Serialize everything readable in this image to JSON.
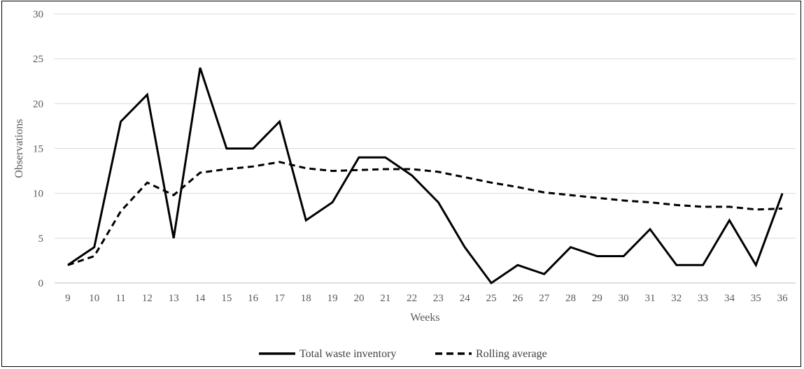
{
  "chart_data": {
    "type": "line",
    "xlabel": "Weeks",
    "ylabel": "Observations",
    "x": [
      "9",
      "10",
      "11",
      "12",
      "13",
      "14",
      "15",
      "16",
      "17",
      "18",
      "19",
      "20",
      "21",
      "22",
      "23",
      "24",
      "25",
      "26",
      "27",
      "28",
      "29",
      "30",
      "31",
      "32",
      "33",
      "34",
      "35",
      "36"
    ],
    "ylim": [
      0,
      30
    ],
    "yticks": [
      "0",
      "5",
      "10",
      "15",
      "20",
      "25",
      "30"
    ],
    "grid": true,
    "legend_position": "bottom",
    "series": [
      {
        "name": "Total waste inventory",
        "style": "solid",
        "color": "#000000",
        "values": [
          2,
          4,
          18,
          21,
          5,
          24,
          15,
          15,
          18,
          7,
          9,
          14,
          14,
          12,
          9,
          4,
          0,
          2,
          1,
          4,
          3,
          3,
          6,
          2,
          2,
          7,
          2,
          10
        ]
      },
      {
        "name": "Rolling average",
        "style": "dashed",
        "color": "#000000",
        "values": [
          2,
          3,
          8,
          11.2,
          9.8,
          12.3,
          12.7,
          13,
          13.5,
          12.8,
          12.5,
          12.6,
          12.7,
          12.7,
          12.4,
          11.8,
          11.2,
          10.7,
          10.1,
          9.8,
          9.5,
          9.2,
          9,
          8.7,
          8.5,
          8.5,
          8.2,
          8.3
        ]
      }
    ]
  }
}
